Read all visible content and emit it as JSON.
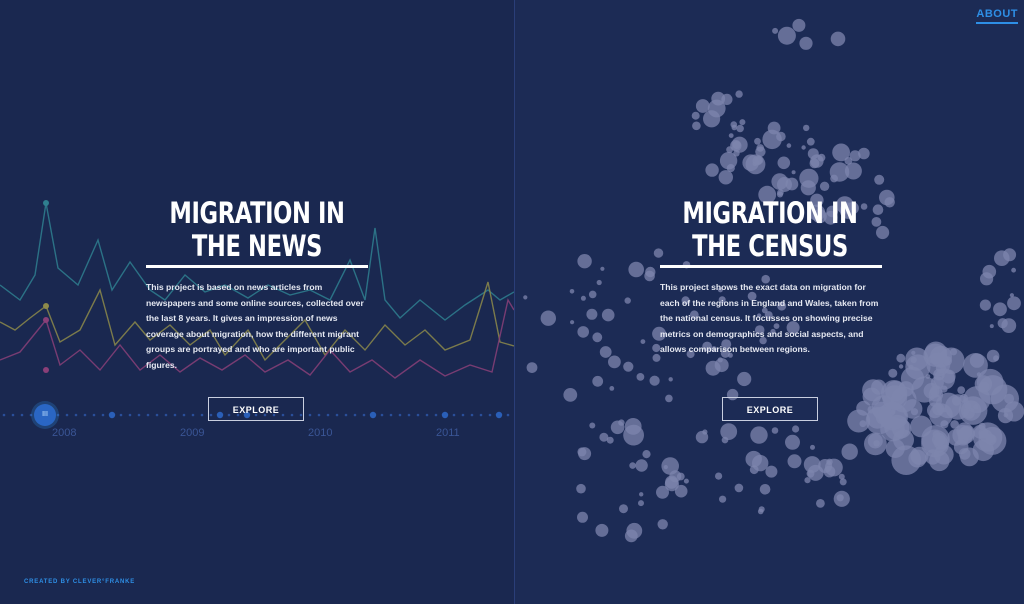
{
  "header": {
    "about_label": "ABOUT"
  },
  "news_panel": {
    "title_line1": "MIGRATION IN",
    "title_line2": "THE NEWS",
    "description": "This project is based on news articles from newspapers and some online sources, collected over the last 8 years. It gives an impression of news coverage about migration, how the different migrant groups are portrayed and who are important public figures.",
    "explore_label": "EXPLORE",
    "timeline": {
      "years": [
        "2008",
        "2009",
        "2010",
        "2011"
      ],
      "handle_glyph": "III"
    }
  },
  "census_panel": {
    "title_line1": "MIGRATION IN",
    "title_line2": "THE CENSUS",
    "description": "This project shows the exact data on migration for each of the regions in England and Wales, taken from the national census. It focusses on showing precise metrics on demographics and social aspects, and allows comparison between regions.",
    "explore_label": "EXPLORE"
  },
  "footer": {
    "credit": "CREATED BY CLEVER°FRANKE"
  },
  "colors": {
    "background": "#1a2850",
    "accent": "#2e8fe6",
    "line_teal": "#2f7f8f",
    "line_olive": "#8d8a4a",
    "line_magenta": "#8a3f78",
    "bubble": "#7d86ae"
  }
}
